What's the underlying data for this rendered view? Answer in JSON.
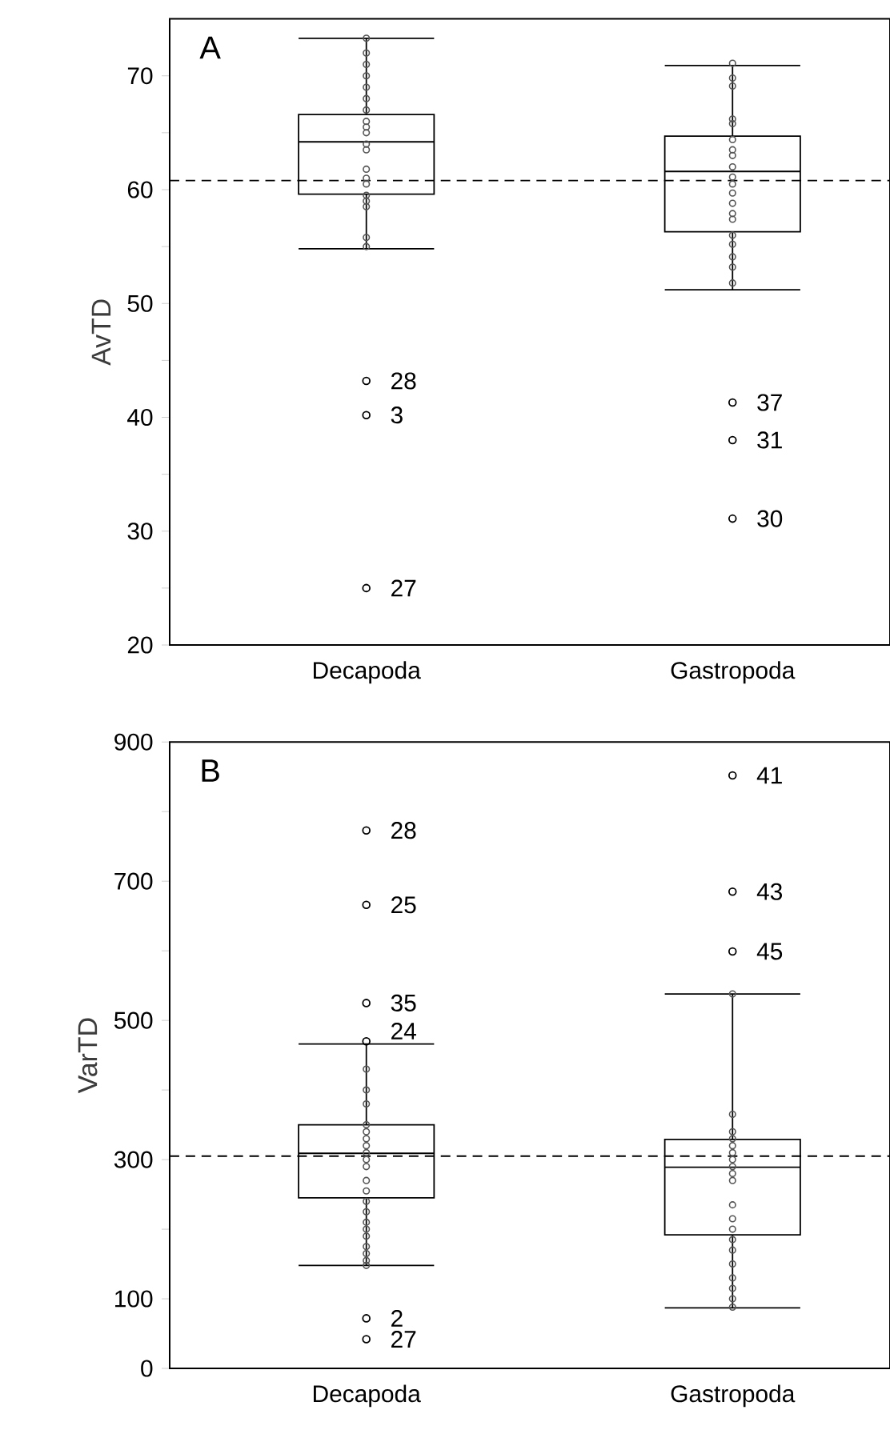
{
  "chart_data": [
    {
      "type": "box",
      "title": "A",
      "ylabel": "AvTD",
      "categories": [
        "Decapoda",
        "Gastropoda"
      ],
      "boxes": [
        {
          "low": 54.8,
          "q1": 59.6,
          "median": 64.2,
          "q3": 66.6,
          "high": 73.3,
          "outliers": [
            43.2,
            40.2,
            25.0
          ]
        },
        {
          "low": 51.2,
          "q1": 56.3,
          "median": 61.6,
          "q3": 64.7,
          "high": 70.9,
          "outliers": [
            41.3,
            38.0,
            31.1
          ]
        }
      ],
      "series": [
        {
          "type": "scatter",
          "color": "#555555",
          "x": [
            "Decapoda",
            "Decapoda",
            "Decapoda",
            "Decapoda",
            "Decapoda",
            "Decapoda",
            "Decapoda",
            "Decapoda",
            "Decapoda",
            "Decapoda",
            "Decapoda",
            "Decapoda",
            "Decapoda",
            "Decapoda",
            "Decapoda",
            "Decapoda",
            "Decapoda",
            "Decapoda",
            "Decapoda",
            "Decapoda"
          ],
          "values": [
            73.3,
            72,
            71,
            70,
            69,
            68,
            67,
            66,
            65.5,
            65,
            64,
            63.5,
            61.8,
            61,
            60.5,
            59.5,
            59,
            58.5,
            55.8,
            55
          ]
        },
        {
          "type": "scatter",
          "color": "#555555",
          "x": [
            "Gastropoda",
            "Gastropoda",
            "Gastropoda",
            "Gastropoda",
            "Gastropoda",
            "Gastropoda",
            "Gastropoda",
            "Gastropoda",
            "Gastropoda",
            "Gastropoda",
            "Gastropoda",
            "Gastropoda",
            "Gastropoda",
            "Gastropoda",
            "Gastropoda",
            "Gastropoda",
            "Gastropoda",
            "Gastropoda",
            "Gastropoda",
            "Gastropoda"
          ],
          "values": [
            71.1,
            69.8,
            69.1,
            66.2,
            65.8,
            64.4,
            63.5,
            63,
            62,
            61.1,
            60.5,
            59.7,
            58.8,
            57.9,
            57.4,
            56,
            55.2,
            54.1,
            53.2,
            51.8
          ]
        }
      ],
      "marker": "circle",
      "ylim": [
        20,
        75
      ],
      "yticks": [
        20,
        {
          "value": 25,
          "label": null
        },
        30,
        {
          "value": 35,
          "label": null
        },
        40,
        {
          "value": 45,
          "label": null
        },
        50,
        {
          "value": 55,
          "label": null
        },
        60,
        {
          "value": 65,
          "label": null
        },
        70
      ],
      "ref_lines": [
        {
          "axis": "y",
          "value": 60.8,
          "line_style": "dashed"
        }
      ],
      "annotations": [
        "28",
        "3",
        "27",
        "37",
        "31",
        "30"
      ]
    },
    {
      "type": "box",
      "title": "B",
      "ylabel": "VarTD",
      "categories": [
        "Decapoda",
        "Gastropoda"
      ],
      "boxes": [
        {
          "low": 148,
          "q1": 245,
          "median": 309,
          "q3": 350,
          "high": 466,
          "outliers": [
            773,
            666,
            525,
            470,
            72,
            42
          ]
        },
        {
          "low": 87,
          "q1": 192,
          "median": 289,
          "q3": 329,
          "high": 538,
          "outliers": [
            852,
            685,
            599
          ]
        }
      ],
      "series": [
        {
          "type": "scatter",
          "color": "#555555",
          "x": [
            "Decapoda",
            "Decapoda",
            "Decapoda",
            "Decapoda",
            "Decapoda",
            "Decapoda",
            "Decapoda",
            "Decapoda",
            "Decapoda",
            "Decapoda",
            "Decapoda",
            "Decapoda",
            "Decapoda",
            "Decapoda",
            "Decapoda",
            "Decapoda",
            "Decapoda",
            "Decapoda",
            "Decapoda",
            "Decapoda",
            "Decapoda"
          ],
          "values": [
            430,
            400,
            380,
            350,
            340,
            330,
            320,
            310,
            300,
            290,
            270,
            255,
            240,
            225,
            210,
            200,
            190,
            175,
            165,
            155,
            148
          ]
        },
        {
          "type": "scatter",
          "color": "#555555",
          "x": [
            "Gastropoda",
            "Gastropoda",
            "Gastropoda",
            "Gastropoda",
            "Gastropoda",
            "Gastropoda",
            "Gastropoda",
            "Gastropoda",
            "Gastropoda",
            "Gastropoda",
            "Gastropoda",
            "Gastropoda",
            "Gastropoda",
            "Gastropoda",
            "Gastropoda",
            "Gastropoda",
            "Gastropoda",
            "Gastropoda",
            "Gastropoda",
            "Gastropoda"
          ],
          "values": [
            538,
            365,
            340,
            330,
            320,
            310,
            300,
            290,
            280,
            270,
            235,
            215,
            200,
            185,
            170,
            150,
            130,
            115,
            100,
            88
          ]
        }
      ],
      "marker": "circle",
      "ylim": [
        0,
        900
      ],
      "yticks": [
        0,
        100,
        {
          "value": 200,
          "label": null
        },
        300,
        {
          "value": 400,
          "label": null
        },
        500,
        {
          "value": 600,
          "label": null
        },
        700,
        {
          "value": 800,
          "label": null
        },
        900
      ],
      "ref_lines": [
        {
          "axis": "y",
          "value": 305,
          "line_style": "dashed"
        }
      ],
      "annotations": [
        "28",
        "25",
        "35",
        "24",
        "2",
        "27",
        "41",
        "43",
        "45"
      ]
    }
  ]
}
